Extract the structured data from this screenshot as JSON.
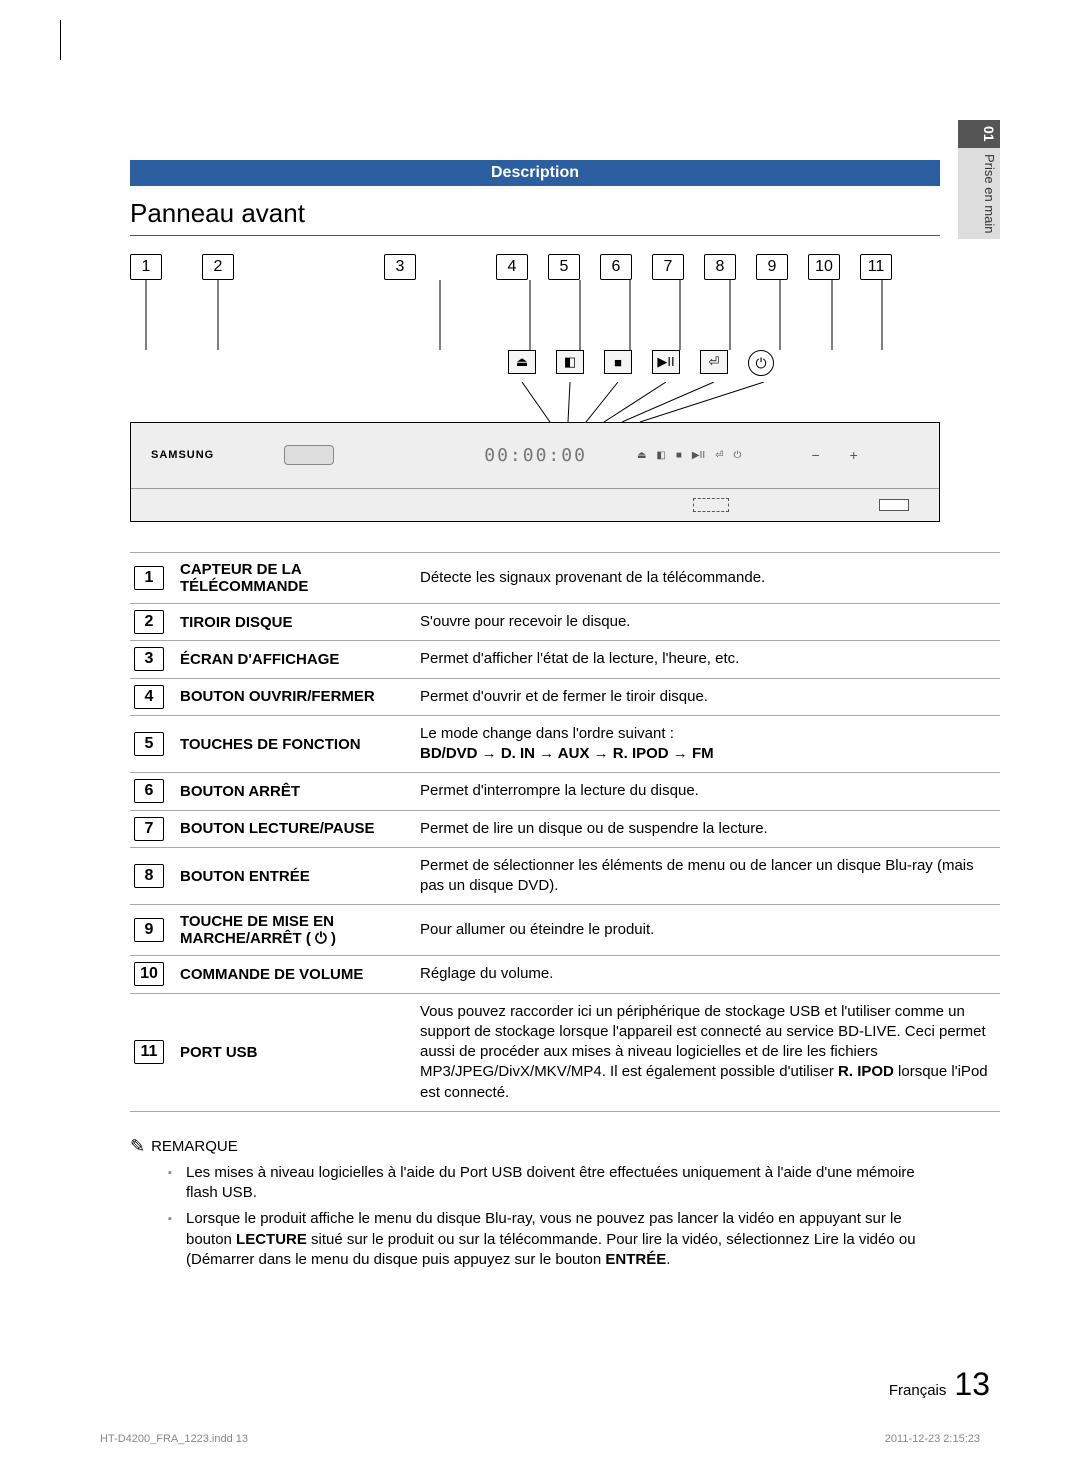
{
  "sidebar": {
    "section_num": "01",
    "section_title": "Prise en main"
  },
  "header": {
    "description_label": "Description",
    "panel_title": "Panneau avant"
  },
  "device": {
    "brand": "SAMSUNG",
    "display": "00:00:00",
    "vol_minus": "−",
    "vol_plus": "+",
    "icons": {
      "eject": "⏏",
      "func": "◧",
      "stop": "■",
      "playpause": "▶II",
      "enter": "⏎",
      "power": "⏻"
    }
  },
  "callouts": [
    "1",
    "2",
    "3",
    "4",
    "5",
    "6",
    "7",
    "8",
    "9",
    "10",
    "11"
  ],
  "table": [
    {
      "n": "1",
      "name": "CAPTEUR DE LA TÉLÉCOMMANDE",
      "desc": "Détecte les signaux provenant de la télécommande."
    },
    {
      "n": "2",
      "name": "TIROIR DISQUE",
      "desc": "S'ouvre pour recevoir le disque."
    },
    {
      "n": "3",
      "name": "ÉCRAN D'AFFICHAGE",
      "desc": "Permet d'afficher l'état de la lecture, l'heure, etc."
    },
    {
      "n": "4",
      "name": "BOUTON OUVRIR/FERMER",
      "desc": "Permet d'ouvrir et de fermer le tiroir disque."
    },
    {
      "n": "5",
      "name": "TOUCHES DE FONCTION",
      "desc": "Le mode change dans l'ordre suivant :",
      "extra": "BD/DVD → D. IN → AUX → R. IPOD → FM"
    },
    {
      "n": "6",
      "name": "BOUTON ARRÊT",
      "desc": "Permet d'interrompre la lecture du disque."
    },
    {
      "n": "7",
      "name": "BOUTON LECTURE/PAUSE",
      "desc": "Permet de lire un disque ou de suspendre la lecture."
    },
    {
      "n": "8",
      "name": "BOUTON ENTRÉE",
      "desc": "Permet de sélectionner les éléments de menu ou de lancer un disque Blu-ray (mais pas un disque DVD)."
    },
    {
      "n": "9",
      "name": "TOUCHE DE MISE EN MARCHE/ARRÊT ( ⏻ )",
      "desc": "Pour allumer ou éteindre le produit."
    },
    {
      "n": "10",
      "name": "COMMANDE DE VOLUME",
      "desc": "Réglage du volume."
    },
    {
      "n": "11",
      "name": "PORT USB",
      "desc": "Vous pouvez raccorder ici un périphérique de stockage USB et l'utiliser comme un support de stockage lorsque l'appareil est connecté au service BD-LIVE. Ceci permet aussi de procéder aux mises à niveau logicielles et de lire les fichiers MP3/JPEG/DivX/MKV/MP4. Il est également possible d'utiliser",
      "extra2": "R. IPOD lorsque l'iPod est connecté."
    }
  ],
  "remark": {
    "label": "REMARQUE",
    "items": [
      "Les mises à niveau logicielles à l'aide du Port USB doivent être effectuées uniquement à l'aide d'une mémoire flash USB.",
      {
        "pre": "Lorsque le produit affiche le menu du disque Blu-ray, vous ne pouvez pas lancer la vidéo en appuyant sur le bouton ",
        "b1": "LECTURE",
        "mid": " situé sur le produit ou sur la télécommande. Pour lire la vidéo, sélectionnez Lire la vidéo ou (Démarrer dans le menu du disque puis appuyez sur le bouton ",
        "b2": "ENTRÉE",
        "post": "."
      }
    ]
  },
  "footer": {
    "lang": "Français",
    "page": "13",
    "file": "HT-D4200_FRA_1223.indd   13",
    "timestamp": "2011-12-23   2:15:23"
  },
  "colors": {
    "accent": "#2c5fa0",
    "tab_dark": "#555555",
    "tab_light": "#dddddd",
    "border": "#aaaaaa"
  }
}
